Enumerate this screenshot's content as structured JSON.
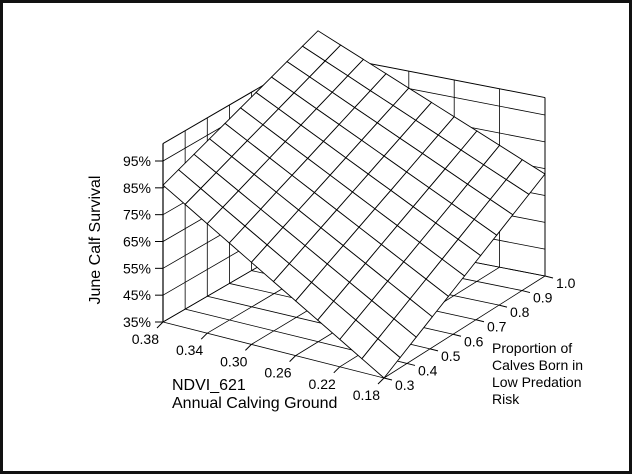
{
  "chart_data": {
    "type": "surface3d",
    "zlabel": "June Calf Survival",
    "xlabel_lines": [
      "NDVI_621",
      "Annual Calving Ground"
    ],
    "ylabel_lines": [
      "Proportion of",
      "Calves Born in",
      "Low Predation",
      "Risk"
    ],
    "x_ticks": [
      "0.38",
      "0.34",
      "0.30",
      "0.26",
      "0.22",
      "0.18"
    ],
    "y_ticks": [
      "0.3",
      "0.4",
      "0.5",
      "0.6",
      "0.7",
      "0.8",
      "0.9",
      "1.0"
    ],
    "z_ticks": [
      "35%",
      "45%",
      "55%",
      "65%",
      "75%",
      "85%",
      "95%"
    ],
    "x_range": [
      0.18,
      0.38
    ],
    "y_range": [
      0.3,
      1.0
    ],
    "z_range": [
      35,
      95
    ],
    "surface": {
      "description_of_values": "survival (%) at corners of the plotted surface",
      "x": [
        0.18,
        0.38
      ],
      "y": [
        0.3,
        1.0
      ],
      "z_at": {
        "x0.38_y0.3": 86,
        "x0.38_y1.0": 110,
        "x0.18_y0.3": 35,
        "x0.18_y1.0": 73
      }
    }
  }
}
